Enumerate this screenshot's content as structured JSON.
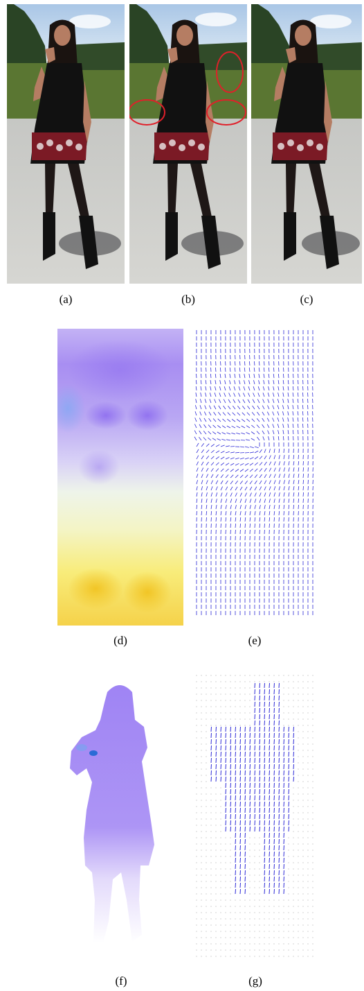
{
  "captions": {
    "a": "(a)",
    "b": "(b)",
    "c": "(c)",
    "d": "(d)",
    "e": "(e)",
    "f": "(f)",
    "g": "(g)"
  },
  "colors": {
    "sky": "#b9d4ec",
    "trees": "#2f4a2a",
    "grass": "#5f7a34",
    "pavement": "#cfcfcc",
    "hair": "#1a1310",
    "skin": "#b57d63",
    "dress": "#111111",
    "dress_pattern": "#8b1d28",
    "tights": "#1e1716",
    "boots": "#111111",
    "shadow": "#6f6f70",
    "annotation_ellipse": "#e0202a",
    "flow_purple": "#9a7af0",
    "flow_lavender": "#cfc6f7",
    "flow_blue": "#8fa6f3",
    "flow_pale": "#eef3e6",
    "flow_yellow": "#f8ec7a",
    "flow_gold": "#f3cf3a",
    "arrow_blue": "#2b28d6",
    "silhouette_purple": "#a487f4",
    "grid_dot": "#8a8a8a"
  }
}
